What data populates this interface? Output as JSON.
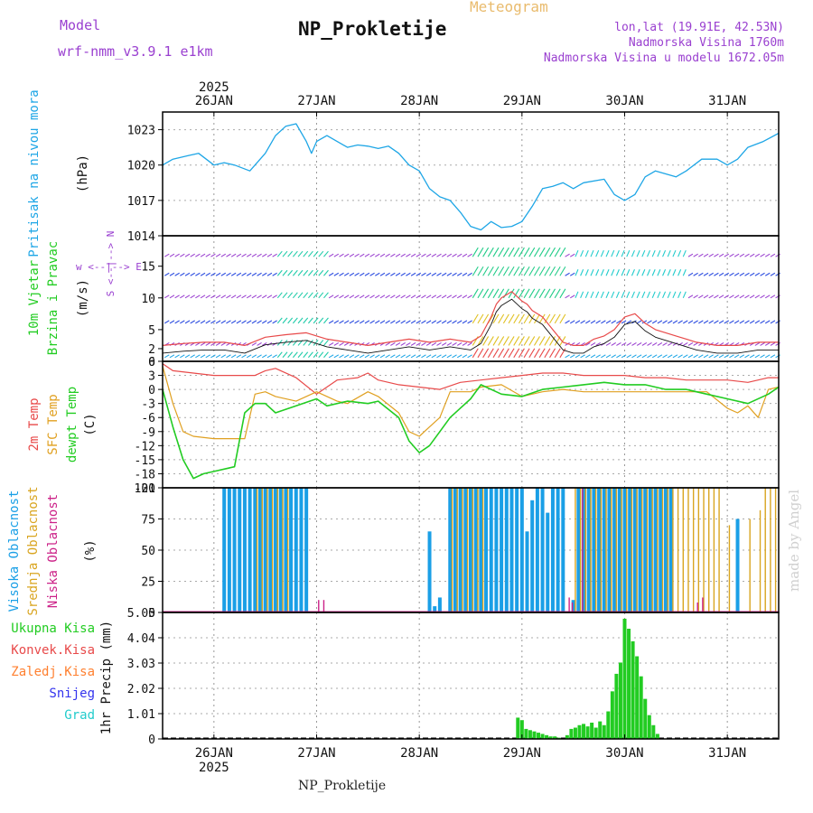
{
  "header": {
    "subtitle": "Meteogram",
    "title": "NP_Prokletije",
    "model_label": "Model",
    "model_name": "wrf-nmm_v3.9.1 e1km",
    "coords": "lon,lat (19.91E, 42.53N)",
    "elevation": "Nadmorska Visina 1760m",
    "model_elevation": "Nadmorska Visina u modelu 1672.05m",
    "credit": "made by Angel",
    "footer": "NP_Prokletije"
  },
  "colors": {
    "pressure": "#1ea6e6",
    "temp2m": "#e84a4a",
    "sfc_temp": "#e0a020",
    "dewpt": "#22cc22",
    "high_cloud": "#1a9fe6",
    "mid_cloud": "#d9a520",
    "low_cloud": "#cc2288",
    "precip_total": "#22cc22",
    "conv_precip": "#e84a4a",
    "freezing": "#ff8030",
    "snow": "#3333ee",
    "hail": "#22cccc",
    "wind_axis": "#9a40d0"
  },
  "chart_data": [
    {
      "id": "pressure",
      "type": "line",
      "ylabel": "Pritisak na nivou mora",
      "unit": "(hPa)",
      "yticks": [
        "1023",
        "1020",
        "1017",
        "1014"
      ],
      "ylim": [
        1014,
        1024.5
      ],
      "series": [
        {
          "x": [
            25.5,
            25.6,
            25.75,
            25.85,
            26.0,
            26.1,
            26.2,
            26.35,
            26.5,
            26.6,
            26.7,
            26.8,
            26.9,
            26.95,
            27.0,
            27.1,
            27.2,
            27.3,
            27.4,
            27.5,
            27.6,
            27.7,
            27.8,
            27.9,
            28.0,
            28.1,
            28.2,
            28.3,
            28.4,
            28.5,
            28.6,
            28.7,
            28.8,
            28.9,
            29.0,
            29.1,
            29.2,
            29.3,
            29.4,
            29.5,
            29.6,
            29.8,
            29.9,
            30.0,
            30.1,
            30.2,
            30.3,
            30.5,
            30.6,
            30.75,
            30.9,
            31.0,
            31.1,
            31.2,
            31.35,
            31.5
          ],
          "values": [
            1020.0,
            1020.5,
            1020.8,
            1021.0,
            1020.0,
            1020.2,
            1020.0,
            1019.5,
            1021.0,
            1022.5,
            1023.3,
            1023.5,
            1022.0,
            1021.0,
            1022.0,
            1022.5,
            1022.0,
            1021.5,
            1021.7,
            1021.6,
            1021.4,
            1021.6,
            1021.0,
            1020.0,
            1019.5,
            1018.0,
            1017.3,
            1017.0,
            1016.0,
            1014.8,
            1014.5,
            1015.2,
            1014.7,
            1014.8,
            1015.2,
            1016.5,
            1018.0,
            1018.2,
            1018.5,
            1018.0,
            1018.5,
            1018.8,
            1017.5,
            1017.0,
            1017.5,
            1019.0,
            1019.5,
            1019.0,
            1019.5,
            1020.5,
            1020.5,
            1020.0,
            1020.5,
            1021.5,
            1022.0,
            1022.7
          ]
        }
      ]
    },
    {
      "id": "wind",
      "type": "line",
      "ylabel": "10m Vjetar",
      "ylabel2": "Brzina i Pravac",
      "unit": "(m/s)",
      "compass": "w <--|--> E",
      "compass2": "S <--|--> N",
      "yticks": [
        "0",
        "2",
        "5",
        "10",
        "15"
      ],
      "ylim": [
        0,
        19.8
      ],
      "series": [
        {
          "name": "speed",
          "x": [
            25.5,
            25.7,
            25.9,
            26.1,
            26.3,
            26.5,
            26.7,
            26.9,
            27.1,
            27.3,
            27.5,
            27.7,
            27.9,
            28.1,
            28.3,
            28.5,
            28.6,
            28.7,
            28.75,
            28.8,
            28.9,
            29.0,
            29.05,
            29.1,
            29.2,
            29.3,
            29.4,
            29.5,
            29.6,
            29.7,
            29.8,
            29.9,
            30.0,
            30.1,
            30.2,
            30.3,
            30.5,
            30.7,
            30.9,
            31.1,
            31.3,
            31.5
          ],
          "values": [
            2.5,
            2.8,
            3.0,
            3.0,
            2.5,
            3.8,
            4.2,
            4.5,
            3.5,
            3.0,
            2.5,
            3.0,
            3.5,
            3.0,
            3.5,
            3.0,
            4.0,
            7.0,
            9.0,
            10.0,
            11.0,
            9.5,
            9.0,
            8.0,
            7.0,
            5.0,
            3.0,
            2.5,
            2.5,
            3.5,
            4.0,
            5.0,
            7.0,
            7.5,
            6.0,
            5.0,
            4.0,
            3.0,
            2.5,
            2.5,
            3.0,
            3.0
          ]
        }
      ]
    },
    {
      "id": "temperature",
      "type": "line",
      "ylabels": [
        "2m Temp",
        "SFC Temp",
        "dewpt Temp"
      ],
      "unit": "(C)",
      "yticks": [
        "6",
        "3",
        "0",
        "-3",
        "-6",
        "-9",
        "-12",
        "-15",
        "-18",
        "-21"
      ],
      "ylim": [
        -21,
        6
      ],
      "series": [
        {
          "name": "2m Temp",
          "x": [
            25.5,
            25.6,
            25.8,
            26.0,
            26.2,
            26.4,
            26.5,
            26.6,
            26.8,
            27.0,
            27.2,
            27.4,
            27.5,
            27.6,
            27.8,
            28.0,
            28.2,
            28.4,
            28.6,
            28.8,
            29.0,
            29.2,
            29.4,
            29.6,
            29.8,
            30.0,
            30.2,
            30.4,
            30.6,
            30.8,
            31.0,
            31.2,
            31.4,
            31.5
          ],
          "values": [
            5.5,
            4.0,
            3.5,
            3.0,
            3.0,
            3.0,
            4.0,
            4.5,
            2.5,
            -1.0,
            2.0,
            2.5,
            3.5,
            2.0,
            1.0,
            0.5,
            0.0,
            1.5,
            2.0,
            2.5,
            3.0,
            3.5,
            3.5,
            3.0,
            3.0,
            3.0,
            2.5,
            2.5,
            2.0,
            2.0,
            2.0,
            1.5,
            2.5,
            2.5
          ]
        },
        {
          "name": "SFC Temp",
          "x": [
            25.5,
            25.6,
            25.7,
            25.8,
            26.0,
            26.2,
            26.3,
            26.4,
            26.5,
            26.6,
            26.8,
            27.0,
            27.2,
            27.3,
            27.5,
            27.6,
            27.8,
            27.9,
            28.0,
            28.1,
            28.2,
            28.3,
            28.5,
            28.6,
            28.8,
            29.0,
            29.2,
            29.4,
            29.6,
            29.8,
            30.0,
            30.2,
            30.4,
            30.6,
            30.8,
            31.0,
            31.1,
            31.2,
            31.3,
            31.4,
            31.5
          ],
          "values": [
            5.0,
            -3.0,
            -9.0,
            -10.0,
            -10.5,
            -10.5,
            -10.5,
            -1.0,
            -0.5,
            -1.5,
            -2.5,
            -0.5,
            -2.5,
            -3.0,
            -0.5,
            -1.5,
            -5.0,
            -9.0,
            -10.0,
            -8.0,
            -6.0,
            -0.5,
            -0.5,
            0.5,
            1.0,
            -1.5,
            -0.5,
            0.0,
            -0.5,
            -0.5,
            -0.5,
            -0.5,
            -0.5,
            -0.5,
            -0.5,
            -4.0,
            -5.0,
            -3.5,
            -6.0,
            0.0,
            0.5
          ]
        },
        {
          "name": "dewpt Temp",
          "x": [
            25.5,
            25.6,
            25.7,
            25.8,
            25.9,
            26.0,
            26.2,
            26.3,
            26.4,
            26.5,
            26.6,
            26.8,
            27.0,
            27.1,
            27.3,
            27.5,
            27.6,
            27.8,
            27.9,
            28.0,
            28.1,
            28.2,
            28.3,
            28.5,
            28.6,
            28.8,
            29.0,
            29.2,
            29.4,
            29.6,
            29.8,
            30.0,
            30.2,
            30.4,
            30.6,
            30.8,
            31.0,
            31.2,
            31.4,
            31.5
          ],
          "values": [
            0.0,
            -8.0,
            -15.0,
            -19.0,
            -18.0,
            -17.5,
            -16.5,
            -5.0,
            -3.0,
            -3.0,
            -5.0,
            -3.5,
            -2.0,
            -3.5,
            -2.5,
            -3.0,
            -2.5,
            -6.0,
            -11.0,
            -13.5,
            -12.0,
            -9.0,
            -6.0,
            -2.0,
            1.0,
            -1.0,
            -1.5,
            0.0,
            0.5,
            1.0,
            1.5,
            1.0,
            1.0,
            0.0,
            0.0,
            -1.0,
            -2.0,
            -3.0,
            -1.0,
            0.5
          ]
        }
      ]
    },
    {
      "id": "cloud",
      "type": "bar",
      "ylabels": [
        "Visoka Oblacnost",
        "Srednja Oblacnost",
        "Niska Oblacnost"
      ],
      "unit": "(%)",
      "yticks": [
        "100",
        "75",
        "50",
        "25",
        "0"
      ],
      "ylim": [
        0,
        100
      ],
      "series": [
        {
          "name": "Visoka Oblacnost",
          "x": [
            26.1,
            26.15,
            26.2,
            26.25,
            26.3,
            26.35,
            26.4,
            26.45,
            26.5,
            26.55,
            26.6,
            26.65,
            26.7,
            26.75,
            26.8,
            26.85,
            26.9,
            28.1,
            28.15,
            28.2,
            28.3,
            28.35,
            28.4,
            28.45,
            28.5,
            28.55,
            28.6,
            28.65,
            28.7,
            28.75,
            28.8,
            28.85,
            28.9,
            28.95,
            29.0,
            29.05,
            29.1,
            29.15,
            29.2,
            29.25,
            29.3,
            29.35,
            29.4,
            29.5,
            29.55,
            29.6,
            29.65,
            29.7,
            29.75,
            29.8,
            29.85,
            29.9,
            29.95,
            30.0,
            30.05,
            30.1,
            30.15,
            30.2,
            30.25,
            30.3,
            30.35,
            30.4,
            30.45,
            31.1
          ],
          "values": [
            100,
            100,
            100,
            100,
            100,
            100,
            100,
            100,
            100,
            100,
            100,
            100,
            100,
            100,
            100,
            100,
            100,
            65,
            5,
            12,
            100,
            100,
            100,
            100,
            100,
            100,
            100,
            100,
            100,
            100,
            100,
            100,
            100,
            100,
            100,
            65,
            90,
            100,
            100,
            80,
            100,
            100,
            100,
            10,
            100,
            100,
            100,
            100,
            100,
            100,
            100,
            100,
            100,
            100,
            100,
            100,
            100,
            100,
            100,
            100,
            100,
            100,
            100,
            75
          ]
        },
        {
          "name": "Srednja Oblacnost",
          "x": [
            26.42,
            26.47,
            26.52,
            26.57,
            26.62,
            26.67,
            26.72,
            28.32,
            28.37,
            28.42,
            28.47,
            28.52,
            28.57,
            28.62,
            29.52,
            29.57,
            29.62,
            29.67,
            29.72,
            29.77,
            29.82,
            29.87,
            29.92,
            29.97,
            30.02,
            30.07,
            30.12,
            30.17,
            30.22,
            30.27,
            30.32,
            30.37,
            30.42,
            30.47,
            30.52,
            30.57,
            30.62,
            30.67,
            30.72,
            30.77,
            30.82,
            30.87,
            30.92,
            31.02,
            31.22,
            31.32,
            31.37,
            31.42,
            31.47
          ],
          "values": [
            100,
            100,
            100,
            100,
            100,
            100,
            100,
            100,
            100,
            100,
            100,
            100,
            100,
            100,
            100,
            100,
            100,
            100,
            100,
            100,
            100,
            100,
            100,
            100,
            100,
            100,
            100,
            100,
            100,
            100,
            100,
            100,
            100,
            100,
            100,
            100,
            100,
            100,
            100,
            100,
            100,
            100,
            100,
            70,
            75,
            82,
            100,
            100,
            100
          ]
        },
        {
          "name": "Niska Oblacnost",
          "x": [
            27.02,
            27.07,
            29.46,
            29.49,
            29.59,
            30.71,
            30.76
          ],
          "values": [
            10,
            10,
            12,
            8,
            100,
            8,
            12
          ]
        }
      ]
    },
    {
      "id": "precip",
      "type": "bar",
      "ylabel": "1hr Precip (mm)",
      "legend": [
        "Ukupna Kisa",
        "Konvek.Kisa",
        "Zaledj.Kisa",
        "Snijeg",
        "Grad"
      ],
      "yticks": [
        "5.05",
        "4.04",
        "3.03",
        "2.02",
        "1.01",
        "0"
      ],
      "ylim": [
        0,
        5.05
      ],
      "series": [
        {
          "name": "Ukupna Kisa",
          "x": [
            28.96,
            29.0,
            29.04,
            29.08,
            29.12,
            29.16,
            29.2,
            29.24,
            29.28,
            29.32,
            29.36,
            29.44,
            29.48,
            29.52,
            29.56,
            29.6,
            29.64,
            29.68,
            29.72,
            29.76,
            29.8,
            29.84,
            29.88,
            29.92,
            29.96,
            30.0,
            30.04,
            30.08,
            30.12,
            30.16,
            30.2,
            30.24,
            30.28,
            30.32
          ],
          "values": [
            0.85,
            0.75,
            0.4,
            0.35,
            0.3,
            0.25,
            0.2,
            0.15,
            0.1,
            0.1,
            0.05,
            0.15,
            0.4,
            0.45,
            0.55,
            0.6,
            0.5,
            0.65,
            0.45,
            0.7,
            0.55,
            1.1,
            1.9,
            2.6,
            3.05,
            4.8,
            4.4,
            3.9,
            3.3,
            2.5,
            1.6,
            0.95,
            0.55,
            0.2
          ]
        }
      ]
    }
  ],
  "axes": {
    "year_label": "2025",
    "top_ticks": [
      "26JAN",
      "27JAN",
      "28JAN",
      "29JAN",
      "30JAN",
      "31JAN"
    ],
    "bottom_ticks": [
      "26JAN",
      "27JAN",
      "28JAN",
      "29JAN",
      "30JAN",
      "31JAN"
    ]
  }
}
